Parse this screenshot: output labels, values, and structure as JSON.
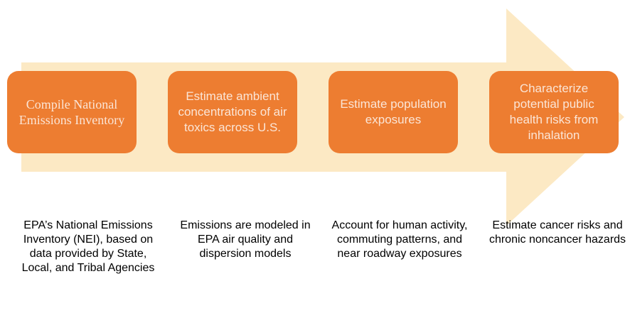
{
  "steps": [
    {
      "label": "Compile National Emissions Inventory",
      "description": "EPA’s National Emissions Inventory (NEI), based on data provided by State, Local, and Tribal Agencies"
    },
    {
      "label": "Estimate ambient concentrations of air toxics across U.S.",
      "description": "Emissions are modeled in EPA air quality and dispersion models"
    },
    {
      "label": "Estimate population exposures",
      "description": "Account for human activity, commuting patterns, and near roadway exposures"
    },
    {
      "label": "Characterize potential public health risks from inhalation",
      "description": "Estimate cancer risks and chronic noncancer hazards"
    }
  ]
}
